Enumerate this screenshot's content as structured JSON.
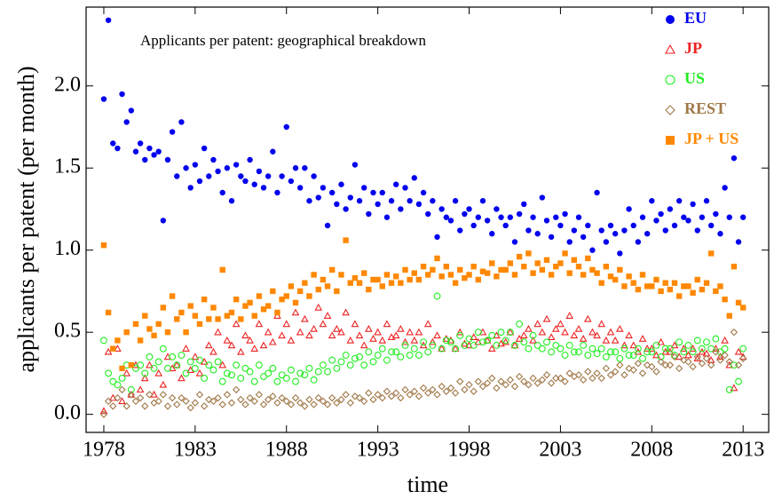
{
  "chart_data": {
    "type": "scatter",
    "title": "Applicants per patent: geographical breakdown",
    "x_label": "time",
    "y_label": "applicants per patent (per month)",
    "xlim": [
      1977.03,
      2014.4
    ],
    "ylim": [
      -0.11,
      2.48
    ],
    "xticks": [
      1978,
      1983,
      1988,
      1993,
      1998,
      2003,
      2008,
      2013
    ],
    "yticks": [
      {
        "value": 0,
        "label": "0.0"
      },
      0.5,
      {
        "value": 1,
        "label": "1.0"
      },
      1.5,
      {
        "value": 2,
        "label": "2.0"
      }
    ],
    "legend": "top-right",
    "x": [
      1978,
      1978.25,
      1978.5,
      1978.75,
      1979,
      1979.25,
      1979.5,
      1979.75,
      1980,
      1980.25,
      1980.5,
      1980.75,
      1981,
      1981.25,
      1981.5,
      1981.75,
      1982,
      1982.25,
      1982.5,
      1982.75,
      1983,
      1983.25,
      1983.5,
      1983.75,
      1984,
      1984.25,
      1984.5,
      1984.75,
      1985,
      1985.25,
      1985.5,
      1985.75,
      1986,
      1986.25,
      1986.5,
      1986.75,
      1987,
      1987.25,
      1987.5,
      1987.75,
      1988,
      1988.25,
      1988.5,
      1988.75,
      1989,
      1989.25,
      1989.5,
      1989.75,
      1990,
      1990.25,
      1990.5,
      1990.75,
      1991,
      1991.25,
      1991.5,
      1991.75,
      1992,
      1992.25,
      1992.5,
      1992.75,
      1993,
      1993.25,
      1993.5,
      1993.75,
      1994,
      1994.25,
      1994.5,
      1994.75,
      1995,
      1995.25,
      1995.5,
      1995.75,
      1996,
      1996.25,
      1996.5,
      1996.75,
      1997,
      1997.25,
      1997.5,
      1997.75,
      1998,
      1998.25,
      1998.5,
      1998.75,
      1999,
      1999.25,
      1999.5,
      1999.75,
      2000,
      2000.25,
      2000.5,
      2000.75,
      2001,
      2001.25,
      2001.5,
      2001.75,
      2002,
      2002.25,
      2002.5,
      2002.75,
      2003,
      2003.25,
      2003.5,
      2003.75,
      2004,
      2004.25,
      2004.5,
      2004.75,
      2005,
      2005.25,
      2005.5,
      2005.75,
      2006,
      2006.25,
      2006.5,
      2006.75,
      2007,
      2007.25,
      2007.5,
      2007.75,
      2008,
      2008.25,
      2008.5,
      2008.75,
      2009,
      2009.25,
      2009.5,
      2009.75,
      2010,
      2010.25,
      2010.5,
      2010.75,
      2011,
      2011.25,
      2011.5,
      2011.75,
      2012,
      2012.25,
      2012.5,
      2012.75,
      2013
    ],
    "series": [
      {
        "name": "EU",
        "color": "#0000ee",
        "marker": "circle",
        "filled": true,
        "values": [
          1.92,
          2.4,
          1.65,
          1.62,
          1.95,
          1.78,
          1.85,
          1.6,
          1.65,
          1.55,
          1.62,
          1.58,
          1.6,
          1.18,
          1.55,
          1.72,
          1.45,
          1.78,
          1.5,
          1.38,
          1.52,
          1.42,
          1.62,
          1.45,
          1.55,
          1.48,
          1.35,
          1.5,
          1.3,
          1.52,
          1.45,
          1.42,
          1.55,
          1.4,
          1.48,
          1.38,
          1.45,
          1.6,
          1.35,
          1.45,
          1.75,
          1.42,
          1.5,
          1.38,
          1.5,
          1.3,
          1.45,
          1.32,
          1.38,
          1.15,
          1.35,
          1.28,
          1.4,
          1.25,
          1.32,
          1.52,
          1.3,
          1.38,
          1.22,
          1.35,
          1.28,
          1.35,
          1.2,
          1.3,
          1.4,
          1.25,
          1.38,
          1.3,
          1.44,
          1.28,
          1.35,
          1.22,
          1.3,
          1.08,
          1.25,
          1.2,
          1.18,
          1.3,
          1.12,
          1.22,
          1.25,
          1.15,
          1.2,
          1.3,
          1.18,
          1.1,
          1.25,
          1.2,
          1.15,
          1.2,
          1.05,
          1.22,
          1.28,
          1.12,
          1.2,
          1.1,
          1.32,
          1.18,
          1.08,
          1.2,
          1.15,
          1.22,
          1.05,
          1.12,
          1.2,
          1.08,
          1.15,
          1.0,
          1.35,
          1.12,
          1.05,
          1.15,
          1.1,
          0.98,
          1.12,
          1.25,
          1.15,
          1.05,
          1.2,
          1.1,
          1.3,
          1.18,
          1.22,
          1.12,
          1.25,
          1.15,
          1.3,
          1.2,
          1.18,
          1.28,
          1.12,
          1.2,
          1.3,
          1.15,
          1.22,
          1.1,
          1.38,
          1.2,
          1.56,
          1.05,
          1.2
        ]
      },
      {
        "name": "JP",
        "color": "#ee2222",
        "marker": "triangle",
        "filled": false,
        "values": [
          0.02,
          0.38,
          0.1,
          0.4,
          0.08,
          0.25,
          0.12,
          0.3,
          0.15,
          0.22,
          0.3,
          0.12,
          0.25,
          0.18,
          0.35,
          0.28,
          0.3,
          0.22,
          0.4,
          0.27,
          0.35,
          0.25,
          0.32,
          0.42,
          0.38,
          0.5,
          0.3,
          0.45,
          0.42,
          0.55,
          0.38,
          0.48,
          0.45,
          0.4,
          0.55,
          0.42,
          0.5,
          0.44,
          0.6,
          0.48,
          0.55,
          0.45,
          0.62,
          0.5,
          0.58,
          0.48,
          0.52,
          0.65,
          0.55,
          0.6,
          0.48,
          0.52,
          0.5,
          0.62,
          0.45,
          0.55,
          0.48,
          0.42,
          0.52,
          0.46,
          0.5,
          0.45,
          0.55,
          0.47,
          0.48,
          0.52,
          0.44,
          0.5,
          0.45,
          0.5,
          0.42,
          0.55,
          0.44,
          0.48,
          0.4,
          0.46,
          0.45,
          0.4,
          0.5,
          0.43,
          0.42,
          0.47,
          0.44,
          0.5,
          0.45,
          0.4,
          0.48,
          0.43,
          0.44,
          0.5,
          0.42,
          0.46,
          0.48,
          0.52,
          0.45,
          0.55,
          0.5,
          0.58,
          0.47,
          0.52,
          0.55,
          0.5,
          0.6,
          0.48,
          0.52,
          0.46,
          0.58,
          0.5,
          0.48,
          0.55,
          0.45,
          0.5,
          0.45,
          0.52,
          0.42,
          0.48,
          0.42,
          0.38,
          0.46,
          0.4,
          0.4,
          0.36,
          0.44,
          0.38,
          0.38,
          0.42,
          0.35,
          0.4,
          0.36,
          0.4,
          0.34,
          0.38,
          0.37,
          0.33,
          0.4,
          0.35,
          0.45,
          0.3,
          0.16,
          0.38,
          0.35
        ]
      },
      {
        "name": "US",
        "color": "#22ee22",
        "marker": "circle",
        "filled": false,
        "values": [
          0.45,
          0.25,
          0.2,
          0.18,
          0.22,
          0.3,
          0.15,
          0.28,
          0.3,
          0.25,
          0.35,
          0.28,
          0.32,
          0.4,
          0.28,
          0.35,
          0.3,
          0.36,
          0.25,
          0.32,
          0.28,
          0.33,
          0.22,
          0.3,
          0.27,
          0.32,
          0.2,
          0.25,
          0.24,
          0.3,
          0.22,
          0.28,
          0.26,
          0.2,
          0.3,
          0.23,
          0.25,
          0.28,
          0.2,
          0.24,
          0.22,
          0.27,
          0.2,
          0.25,
          0.24,
          0.28,
          0.21,
          0.26,
          0.3,
          0.26,
          0.33,
          0.28,
          0.32,
          0.36,
          0.3,
          0.34,
          0.35,
          0.3,
          0.38,
          0.32,
          0.36,
          0.4,
          0.33,
          0.38,
          0.38,
          0.35,
          0.42,
          0.36,
          0.4,
          0.36,
          0.44,
          0.38,
          0.42,
          0.72,
          0.4,
          0.45,
          0.44,
          0.4,
          0.48,
          0.42,
          0.46,
          0.42,
          0.5,
          0.44,
          0.45,
          0.48,
          0.42,
          0.5,
          0.45,
          0.5,
          0.42,
          0.55,
          0.44,
          0.4,
          0.48,
          0.42,
          0.4,
          0.44,
          0.38,
          0.42,
          0.4,
          0.36,
          0.42,
          0.38,
          0.38,
          0.42,
          0.36,
          0.4,
          0.37,
          0.4,
          0.35,
          0.38,
          0.38,
          0.34,
          0.4,
          0.36,
          0.36,
          0.4,
          0.34,
          0.38,
          0.38,
          0.42,
          0.35,
          0.4,
          0.4,
          0.36,
          0.44,
          0.38,
          0.42,
          0.38,
          0.45,
          0.4,
          0.44,
          0.4,
          0.46,
          0.38,
          0.4,
          0.15,
          0.3,
          0.2,
          0.4
        ]
      },
      {
        "name": "REST",
        "color": "#a07848",
        "marker": "diamond",
        "filled": false,
        "values": [
          0.0,
          0.08,
          0.05,
          0.1,
          0.15,
          0.05,
          0.12,
          0.08,
          0.1,
          0.05,
          0.12,
          0.07,
          0.08,
          0.12,
          0.05,
          0.1,
          0.06,
          0.1,
          0.08,
          0.04,
          0.07,
          0.12,
          0.05,
          0.09,
          0.08,
          0.1,
          0.06,
          0.12,
          0.07,
          0.15,
          0.09,
          0.06,
          0.1,
          0.08,
          0.12,
          0.06,
          0.09,
          0.11,
          0.07,
          0.1,
          0.08,
          0.06,
          0.1,
          0.07,
          0.05,
          0.09,
          0.06,
          0.1,
          0.08,
          0.06,
          0.1,
          0.07,
          0.09,
          0.12,
          0.07,
          0.11,
          0.1,
          0.08,
          0.13,
          0.09,
          0.12,
          0.1,
          0.14,
          0.11,
          0.13,
          0.1,
          0.15,
          0.12,
          0.14,
          0.11,
          0.16,
          0.13,
          0.15,
          0.12,
          0.17,
          0.14,
          0.16,
          0.13,
          0.2,
          0.15,
          0.18,
          0.14,
          0.2,
          0.17,
          0.19,
          0.22,
          0.16,
          0.2,
          0.18,
          0.21,
          0.17,
          0.23,
          0.2,
          0.18,
          0.22,
          0.19,
          0.21,
          0.24,
          0.19,
          0.22,
          0.22,
          0.2,
          0.25,
          0.23,
          0.24,
          0.21,
          0.26,
          0.22,
          0.25,
          0.22,
          0.28,
          0.24,
          0.26,
          0.3,
          0.24,
          0.28,
          0.27,
          0.31,
          0.25,
          0.3,
          0.29,
          0.26,
          0.32,
          0.3,
          0.3,
          0.35,
          0.28,
          0.33,
          0.32,
          0.29,
          0.35,
          0.31,
          0.34,
          0.3,
          0.38,
          0.33,
          0.36,
          0.32,
          0.5,
          0.3,
          0.34
        ]
      },
      {
        "name": "JP + US",
        "color": "#ff8800",
        "marker": "square",
        "filled": true,
        "values": [
          1.03,
          0.62,
          0.4,
          0.45,
          0.28,
          0.5,
          0.3,
          0.55,
          0.45,
          0.6,
          0.52,
          0.48,
          0.55,
          0.65,
          0.5,
          0.72,
          0.58,
          0.62,
          0.5,
          0.66,
          0.6,
          0.55,
          0.7,
          0.58,
          0.65,
          0.58,
          0.88,
          0.6,
          0.62,
          0.7,
          0.58,
          0.66,
          0.68,
          0.6,
          0.72,
          0.64,
          0.66,
          0.75,
          0.62,
          0.7,
          0.72,
          0.78,
          0.68,
          0.75,
          0.8,
          0.72,
          0.85,
          0.76,
          0.82,
          0.78,
          0.88,
          0.75,
          0.85,
          1.06,
          0.8,
          0.83,
          0.8,
          0.86,
          0.76,
          0.82,
          0.82,
          0.78,
          0.85,
          0.8,
          0.84,
          0.8,
          0.88,
          0.82,
          0.86,
          0.82,
          0.9,
          0.85,
          0.88,
          0.95,
          0.84,
          0.9,
          0.85,
          0.8,
          0.88,
          0.83,
          0.85,
          0.9,
          0.82,
          0.87,
          0.86,
          0.92,
          0.84,
          0.88,
          0.88,
          0.92,
          0.85,
          0.96,
          0.9,
          0.98,
          0.86,
          0.92,
          0.88,
          0.94,
          0.85,
          0.9,
          0.92,
          0.98,
          0.86,
          0.94,
          0.9,
          0.85,
          0.95,
          0.88,
          0.86,
          0.8,
          0.9,
          0.84,
          0.82,
          0.88,
          0.78,
          0.84,
          0.8,
          0.76,
          0.85,
          0.78,
          0.78,
          0.82,
          0.75,
          0.8,
          0.76,
          0.8,
          0.72,
          0.78,
          0.78,
          0.74,
          0.82,
          0.76,
          0.8,
          0.98,
          0.75,
          0.78,
          0.7,
          0.6,
          0.9,
          0.68,
          0.65
        ]
      }
    ]
  }
}
